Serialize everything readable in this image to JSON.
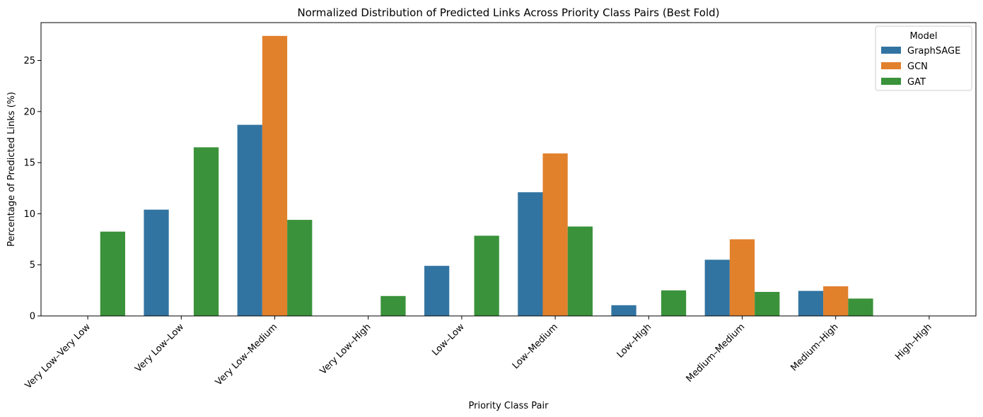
{
  "chart_data": {
    "type": "bar",
    "title": "Normalized Distribution of Predicted Links Across Priority Class Pairs (Best Fold)",
    "xlabel": "Priority Class Pair",
    "ylabel": "Percentage of Predicted Links (%)",
    "ylim": [
      0,
      28.7
    ],
    "yticks": [
      0,
      5,
      10,
      15,
      20,
      25
    ],
    "grid": false,
    "categories": [
      "Very Low–Very Low",
      "Very Low–Low",
      "Very Low–Medium",
      "Very Low–High",
      "Low–Low",
      "Low–Medium",
      "Low–High",
      "Medium–Medium",
      "Medium–High",
      "High–High"
    ],
    "series": [
      {
        "name": "GraphSAGE",
        "color": "#3274a1",
        "values": [
          0,
          10.4,
          18.7,
          0,
          4.9,
          12.1,
          1.05,
          5.5,
          2.45,
          0
        ]
      },
      {
        "name": "GCN",
        "color": "#e1812c",
        "values": [
          0,
          0,
          27.4,
          0,
          0,
          15.9,
          0,
          7.5,
          2.9,
          0
        ]
      },
      {
        "name": "GAT",
        "color": "#3a923a",
        "values": [
          8.25,
          16.5,
          9.4,
          1.95,
          7.85,
          8.75,
          2.5,
          2.35,
          1.7,
          0
        ]
      }
    ],
    "legend": {
      "title": "Model",
      "position": "top-right"
    }
  }
}
